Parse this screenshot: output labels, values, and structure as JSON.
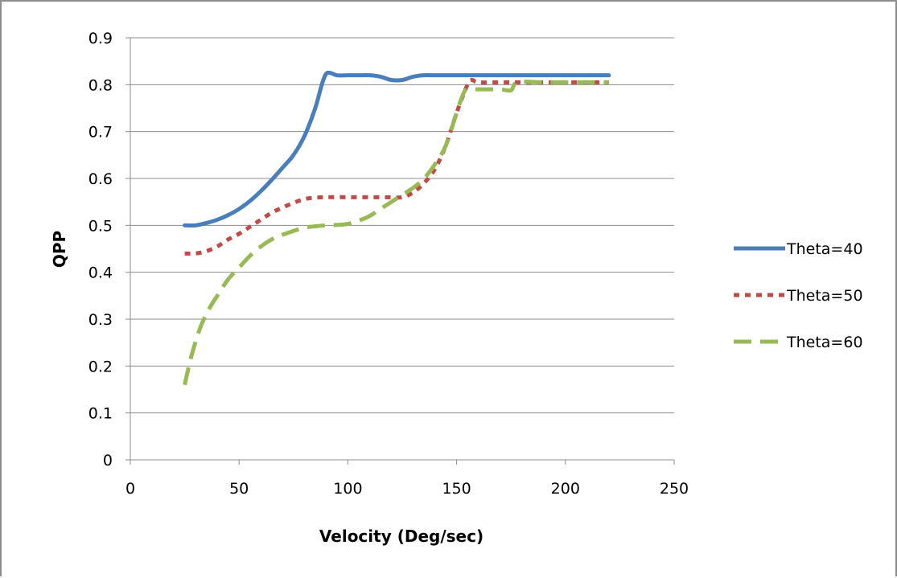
{
  "chart_data": {
    "type": "line",
    "title": "",
    "xlabel": "Velocity (Deg/sec)",
    "ylabel": "QPP",
    "xlim": [
      0,
      250
    ],
    "ylim": [
      0,
      0.9
    ],
    "x_ticks": [
      "0",
      "50",
      "100",
      "150",
      "200",
      "250"
    ],
    "y_ticks": [
      "0",
      "0.1",
      "0.2",
      "0.3",
      "0.4",
      "0.5",
      "0.6",
      "0.7",
      "0.8",
      "0.9"
    ],
    "grid": "horizontal",
    "legend_position": "right",
    "series": [
      {
        "name": "Theta=40",
        "color": "#4a7ebb",
        "style": "solid",
        "x": [
          25,
          30,
          35,
          40,
          45,
          50,
          55,
          60,
          65,
          70,
          75,
          80,
          85,
          88,
          90,
          92,
          95,
          100,
          105,
          110,
          115,
          120,
          125,
          130,
          135,
          140,
          150,
          160,
          170,
          180,
          200,
          220
        ],
        "y": [
          0.5,
          0.5,
          0.505,
          0.512,
          0.522,
          0.535,
          0.552,
          0.573,
          0.597,
          0.623,
          0.65,
          0.69,
          0.75,
          0.8,
          0.823,
          0.825,
          0.82,
          0.82,
          0.82,
          0.82,
          0.817,
          0.81,
          0.81,
          0.817,
          0.82,
          0.82,
          0.82,
          0.82,
          0.82,
          0.82,
          0.82,
          0.82
        ]
      },
      {
        "name": "Theta=50",
        "color": "#be4b48",
        "style": "dotted",
        "x": [
          25,
          30,
          35,
          40,
          45,
          50,
          55,
          60,
          65,
          70,
          75,
          80,
          85,
          90,
          100,
          110,
          120,
          125,
          130,
          135,
          140,
          145,
          150,
          155,
          157,
          160,
          170,
          175,
          180,
          200,
          220
        ],
        "y": [
          0.44,
          0.44,
          0.445,
          0.455,
          0.47,
          0.482,
          0.497,
          0.512,
          0.527,
          0.538,
          0.548,
          0.556,
          0.559,
          0.56,
          0.56,
          0.56,
          0.56,
          0.56,
          0.57,
          0.59,
          0.62,
          0.67,
          0.74,
          0.8,
          0.81,
          0.805,
          0.805,
          0.805,
          0.805,
          0.805,
          0.805
        ]
      },
      {
        "name": "Theta=60",
        "color": "#98b954",
        "style": "dashed",
        "x": [
          25,
          28,
          32,
          36,
          40,
          45,
          50,
          55,
          60,
          65,
          70,
          75,
          80,
          85,
          90,
          95,
          100,
          105,
          110,
          115,
          120,
          125,
          130,
          135,
          140,
          145,
          150,
          153,
          155,
          160,
          170,
          175,
          178,
          190,
          200,
          210,
          220
        ],
        "y": [
          0.16,
          0.22,
          0.28,
          0.32,
          0.35,
          0.385,
          0.41,
          0.435,
          0.455,
          0.47,
          0.48,
          0.488,
          0.495,
          0.498,
          0.5,
          0.501,
          0.503,
          0.51,
          0.52,
          0.535,
          0.55,
          0.565,
          0.58,
          0.6,
          0.63,
          0.67,
          0.74,
          0.78,
          0.79,
          0.79,
          0.79,
          0.788,
          0.805,
          0.805,
          0.805,
          0.805,
          0.805
        ]
      }
    ]
  }
}
